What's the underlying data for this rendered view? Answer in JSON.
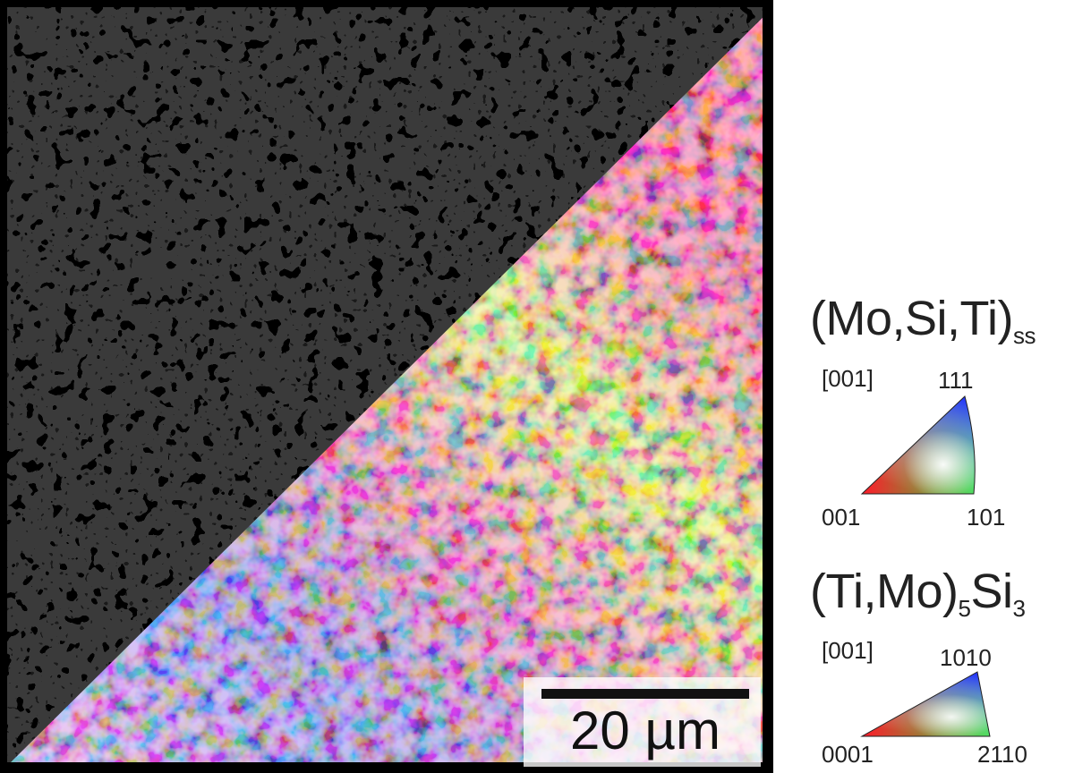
{
  "scale_bar": {
    "label": "20 µm"
  },
  "legend": [
    {
      "phase_base": "(Mo,Si,Ti)",
      "phase_sub": "ss",
      "direction": "[001]",
      "corner_left": "001",
      "corner_right": "101",
      "corner_top": "111"
    },
    {
      "phase_part1": "(Ti,Mo)",
      "phase_sub1": "5",
      "phase_part2": "Si",
      "phase_sub2": "3",
      "direction": "[001]",
      "corner_left": "0001",
      "corner_right": "2110",
      "corner_top": "1010"
    }
  ],
  "colors": {
    "ipf_red": "#ff2030",
    "ipf_green": "#30e040",
    "ipf_blue": "#2030ff",
    "frame": "#000000"
  }
}
